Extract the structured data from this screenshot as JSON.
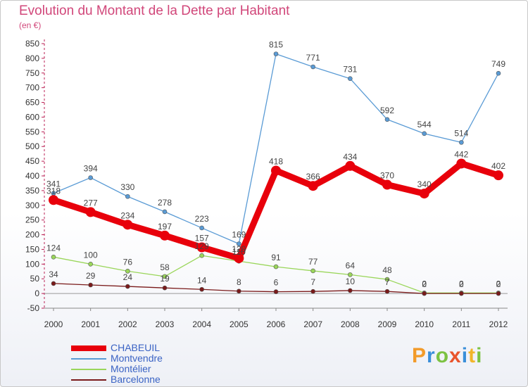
{
  "title": "Evolution du Montant de la Dette par Habitant",
  "subtitle": "(en €)",
  "logo": {
    "text": "Proxiti",
    "colors": [
      "#f29b2a",
      "#3a8fd9",
      "#7cc242",
      "#e9542c",
      "#3a8fd9",
      "#f2b52a",
      "#7cc242"
    ]
  },
  "chart_data": {
    "type": "line",
    "x": [
      "2000",
      "2001",
      "2002",
      "2003",
      "2004",
      "2005",
      "2006",
      "2007",
      "2008",
      "2009",
      "2010",
      "2011",
      "2012"
    ],
    "ylim": [
      -50,
      850
    ],
    "yticks": [
      -50,
      0,
      50,
      100,
      150,
      200,
      250,
      300,
      350,
      400,
      450,
      500,
      550,
      600,
      650,
      700,
      750,
      800,
      850
    ],
    "grid": false,
    "legend_position": "bottom-left",
    "series": [
      {
        "name": "CHABEUIL",
        "color": "#e8000b",
        "bold": true,
        "values": [
          318,
          277,
          234,
          197,
          157,
          120,
          418,
          366,
          434,
          370,
          340,
          442,
          402
        ],
        "labels": [
          "318",
          "277",
          "234",
          "197",
          "157",
          "120",
          "418",
          "366",
          "434",
          "370",
          "340",
          "442",
          "402"
        ]
      },
      {
        "name": "Montvendre",
        "color": "#5a9bd5",
        "bold": false,
        "values": [
          341,
          394,
          330,
          278,
          223,
          169,
          815,
          771,
          731,
          592,
          544,
          514,
          749
        ],
        "labels": [
          "341",
          "394",
          "330",
          "278",
          "223",
          "169",
          "815",
          "771",
          "731",
          "592",
          "544",
          "514",
          "749"
        ]
      },
      {
        "name": "Montélier",
        "color": "#9ad65a",
        "bold": false,
        "values": [
          124,
          100,
          76,
          58,
          129,
          110,
          91,
          77,
          64,
          48,
          2,
          2,
          2
        ],
        "labels": [
          "124",
          "100",
          "76",
          "58",
          "129",
          "110",
          "91",
          "77",
          "64",
          "48",
          "2",
          "2",
          "2"
        ]
      },
      {
        "name": "Barcelonne",
        "color": "#7a1a1a",
        "bold": false,
        "values": [
          34,
          29,
          24,
          19,
          14,
          8,
          6,
          7,
          10,
          7,
          0,
          0,
          0
        ],
        "labels": [
          "34",
          "29",
          "24",
          "19",
          "14",
          "8",
          "6",
          "7",
          "10",
          "7",
          "0",
          "0",
          "0"
        ]
      }
    ]
  }
}
